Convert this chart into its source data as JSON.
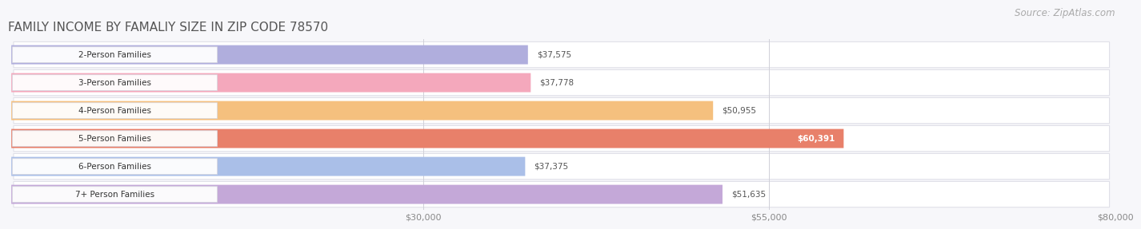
{
  "title": "Family Income by Famaliy Size in Zip Code 78570",
  "source": "Source: ZipAtlas.com",
  "categories": [
    "2-Person Families",
    "3-Person Families",
    "4-Person Families",
    "5-Person Families",
    "6-Person Families",
    "7+ Person Families"
  ],
  "values": [
    37575,
    37778,
    50955,
    60391,
    37375,
    51635
  ],
  "labels": [
    "$37,575",
    "$37,778",
    "$50,955",
    "$60,391",
    "$37,375",
    "$51,635"
  ],
  "bar_colors": [
    "#b0aedd",
    "#f4a8bc",
    "#f5c07e",
    "#e8806a",
    "#aabfe8",
    "#c4a8d8"
  ],
  "value_label_inside": [
    false,
    false,
    false,
    true,
    false,
    false
  ],
  "xticks": [
    30000,
    55000,
    80000
  ],
  "xticklabels": [
    "$30,000",
    "$55,000",
    "$80,000"
  ],
  "xmin": 0,
  "xmax": 80000,
  "background_color": "#f7f7fa",
  "row_bg_color": "#ffffff",
  "row_border_color": "#e0e0e8",
  "title_fontsize": 11,
  "source_fontsize": 8.5
}
